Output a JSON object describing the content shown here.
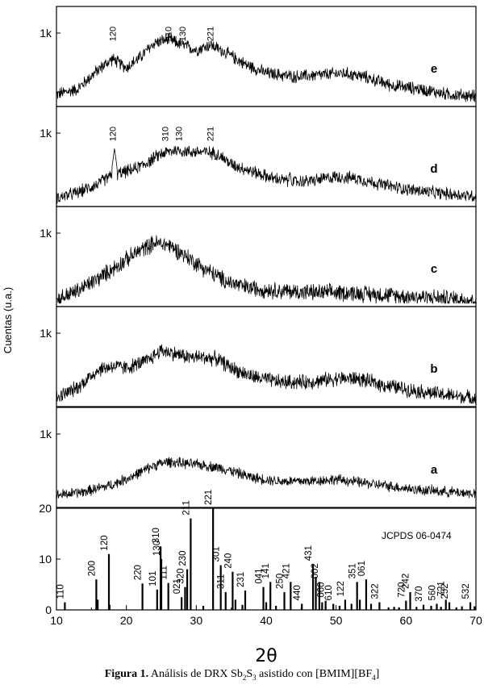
{
  "chart_data": {
    "type": "line",
    "ylabel": "Cuentas (u.a.)",
    "xlabel": "2θ",
    "xlim": [
      10,
      70
    ],
    "x_ticks": [
      10,
      20,
      30,
      40,
      50,
      60,
      70
    ],
    "x_tick_labels": [
      "10",
      "20",
      "30",
      "40",
      "50",
      "60",
      "70"
    ],
    "y_tick_label": "1k",
    "panels": [
      {
        "letter": "e",
        "shape": [
          [
            10,
            0.1
          ],
          [
            13,
            0.16
          ],
          [
            16,
            0.38
          ],
          [
            18,
            0.5
          ],
          [
            20,
            0.4
          ],
          [
            22,
            0.52
          ],
          [
            24,
            0.68
          ],
          [
            26,
            0.72
          ],
          [
            28,
            0.66
          ],
          [
            30,
            0.6
          ],
          [
            32,
            0.66
          ],
          [
            34,
            0.58
          ],
          [
            37,
            0.44
          ],
          [
            40,
            0.34
          ],
          [
            44,
            0.3
          ],
          [
            48,
            0.32
          ],
          [
            51,
            0.34
          ],
          [
            54,
            0.3
          ],
          [
            58,
            0.2
          ],
          [
            62,
            0.16
          ],
          [
            66,
            0.1
          ],
          [
            70,
            0.08
          ]
        ],
        "noise": 0.06,
        "spikes": [],
        "peak_labels": [
          {
            "x": 18,
            "text": "120"
          },
          {
            "x": 26,
            "text": "310"
          },
          {
            "x": 28,
            "text": "130"
          },
          {
            "x": 32,
            "text": "221"
          }
        ]
      },
      {
        "letter": "d",
        "shape": [
          [
            10,
            0.06
          ],
          [
            13,
            0.12
          ],
          [
            16,
            0.22
          ],
          [
            17.5,
            0.3
          ],
          [
            19,
            0.34
          ],
          [
            21,
            0.38
          ],
          [
            23,
            0.46
          ],
          [
            25,
            0.56
          ],
          [
            27,
            0.6
          ],
          [
            29,
            0.58
          ],
          [
            31,
            0.58
          ],
          [
            33,
            0.56
          ],
          [
            35,
            0.44
          ],
          [
            38,
            0.36
          ],
          [
            41,
            0.28
          ],
          [
            44,
            0.24
          ],
          [
            47,
            0.26
          ],
          [
            50,
            0.3
          ],
          [
            53,
            0.28
          ],
          [
            56,
            0.22
          ],
          [
            60,
            0.16
          ],
          [
            64,
            0.12
          ],
          [
            70,
            0.08
          ]
        ],
        "noise": 0.06,
        "spikes": [
          {
            "x": 18.3,
            "h": 0.62
          },
          {
            "x": 43.4,
            "h": 0.36
          }
        ],
        "peak_labels": [
          {
            "x": 18,
            "text": "120"
          },
          {
            "x": 25.5,
            "text": "310"
          },
          {
            "x": 27.5,
            "text": "130"
          },
          {
            "x": 32,
            "text": "221"
          }
        ]
      },
      {
        "letter": "c",
        "shape": [
          [
            10,
            0.04
          ],
          [
            13,
            0.14
          ],
          [
            16,
            0.28
          ],
          [
            19,
            0.44
          ],
          [
            22,
            0.6
          ],
          [
            24,
            0.68
          ],
          [
            26,
            0.66
          ],
          [
            28,
            0.56
          ],
          [
            31,
            0.4
          ],
          [
            34,
            0.26
          ],
          [
            37,
            0.18
          ],
          [
            42,
            0.14
          ],
          [
            47,
            0.12
          ],
          [
            52,
            0.12
          ],
          [
            56,
            0.1
          ],
          [
            60,
            0.08
          ],
          [
            65,
            0.06
          ],
          [
            70,
            0.04
          ]
        ],
        "noise": 0.08,
        "spikes": [],
        "peak_labels": []
      },
      {
        "letter": "b",
        "shape": [
          [
            10,
            0.06
          ],
          [
            13,
            0.18
          ],
          [
            16,
            0.38
          ],
          [
            18,
            0.42
          ],
          [
            20,
            0.4
          ],
          [
            23,
            0.48
          ],
          [
            25,
            0.6
          ],
          [
            27,
            0.56
          ],
          [
            29,
            0.52
          ],
          [
            31,
            0.52
          ],
          [
            33,
            0.5
          ],
          [
            35,
            0.4
          ],
          [
            38,
            0.3
          ],
          [
            42,
            0.24
          ],
          [
            46,
            0.24
          ],
          [
            50,
            0.28
          ],
          [
            53,
            0.28
          ],
          [
            56,
            0.22
          ],
          [
            60,
            0.16
          ],
          [
            65,
            0.1
          ],
          [
            70,
            0.06
          ]
        ],
        "noise": 0.07,
        "spikes": [],
        "peak_labels": []
      },
      {
        "letter": "a",
        "shape": [
          [
            10,
            0.1
          ],
          [
            14,
            0.14
          ],
          [
            18,
            0.22
          ],
          [
            21,
            0.32
          ],
          [
            24,
            0.44
          ],
          [
            26,
            0.48
          ],
          [
            28,
            0.46
          ],
          [
            31,
            0.44
          ],
          [
            34,
            0.4
          ],
          [
            38,
            0.3
          ],
          [
            42,
            0.26
          ],
          [
            46,
            0.26
          ],
          [
            50,
            0.28
          ],
          [
            54,
            0.24
          ],
          [
            58,
            0.2
          ],
          [
            62,
            0.16
          ],
          [
            66,
            0.14
          ],
          [
            70,
            0.12
          ]
        ],
        "noise": 0.05,
        "spikes": [],
        "peak_labels": []
      }
    ],
    "reference": {
      "label": "JCPDS 06-0474",
      "ylim": [
        0,
        20
      ],
      "y_ticks": [
        0,
        10,
        20
      ],
      "lines": [
        {
          "x": 11.2,
          "h": 1.5,
          "label": "110"
        },
        {
          "x": 15.7,
          "h": 6,
          "label": "200"
        },
        {
          "x": 15.9,
          "h": 2
        },
        {
          "x": 17.5,
          "h": 11,
          "label": "120"
        },
        {
          "x": 17.6,
          "h": 1
        },
        {
          "x": 22.3,
          "h": 5.2,
          "label": "220"
        },
        {
          "x": 24.4,
          "h": 4,
          "label": "101"
        },
        {
          "x": 24.9,
          "h": 12.5,
          "label": "310"
        },
        {
          "x": 25.0,
          "h": 10,
          "label": "130"
        },
        {
          "x": 26.0,
          "h": 5.3,
          "label": "111"
        },
        {
          "x": 27.9,
          "h": 2.5,
          "label": "021"
        },
        {
          "x": 28.4,
          "h": 4.5,
          "label": "320"
        },
        {
          "x": 28.7,
          "h": 8,
          "label": "230"
        },
        {
          "x": 29.2,
          "h": 18,
          "label": "211"
        },
        {
          "x": 31.0,
          "h": 0.8
        },
        {
          "x": 32.4,
          "h": 20,
          "label": "221"
        },
        {
          "x": 33.5,
          "h": 8.8,
          "label": "301"
        },
        {
          "x": 34.2,
          "h": 3.5,
          "label": "311"
        },
        {
          "x": 35.2,
          "h": 7.5,
          "label": "240"
        },
        {
          "x": 35.6,
          "h": 2
        },
        {
          "x": 36.6,
          "h": 1
        },
        {
          "x": 37.0,
          "h": 3.8,
          "label": "231"
        },
        {
          "x": 39.6,
          "h": 4.5,
          "label": "041"
        },
        {
          "x": 40.0,
          "h": 1.5
        },
        {
          "x": 40.6,
          "h": 5.5,
          "label": "141"
        },
        {
          "x": 41.4,
          "h": 0.8
        },
        {
          "x": 42.6,
          "h": 3.5,
          "label": "250"
        },
        {
          "x": 43.5,
          "h": 5.5,
          "label": "421"
        },
        {
          "x": 45.1,
          "h": 1.2,
          "label": "440"
        },
        {
          "x": 46.7,
          "h": 9,
          "label": "431"
        },
        {
          "x": 47.1,
          "h": 6.5
        },
        {
          "x": 47.6,
          "h": 5.5,
          "label": "002"
        },
        {
          "x": 48.0,
          "h": 1.5
        },
        {
          "x": 48.5,
          "h": 1.8,
          "label": "060"
        },
        {
          "x": 49.6,
          "h": 1.2,
          "label": "610"
        },
        {
          "x": 50.5,
          "h": 0.8
        },
        {
          "x": 51.3,
          "h": 2,
          "label": "122"
        },
        {
          "x": 52.2,
          "h": 1.2
        },
        {
          "x": 53.0,
          "h": 5.5,
          "label": "351"
        },
        {
          "x": 53.4,
          "h": 2
        },
        {
          "x": 54.3,
          "h": 6,
          "label": "061"
        },
        {
          "x": 55.0,
          "h": 1.2
        },
        {
          "x": 56.2,
          "h": 1.5,
          "label": "322"
        },
        {
          "x": 57.5,
          "h": 0.5
        },
        {
          "x": 58.3,
          "h": 0.6
        },
        {
          "x": 59.0,
          "h": 0.5
        },
        {
          "x": 60.0,
          "h": 1.8,
          "label": "720"
        },
        {
          "x": 60.6,
          "h": 3.5,
          "label": "242"
        },
        {
          "x": 61.5,
          "h": 0.6
        },
        {
          "x": 62.5,
          "h": 1.0,
          "label": "370"
        },
        {
          "x": 63.6,
          "h": 0.8
        },
        {
          "x": 64.4,
          "h": 1.2,
          "label": "560"
        },
        {
          "x": 65.0,
          "h": 0.6
        },
        {
          "x": 65.7,
          "h": 2,
          "label": "721"
        },
        {
          "x": 66.2,
          "h": 1.5,
          "label": "252"
        },
        {
          "x": 67.2,
          "h": 0.5
        },
        {
          "x": 68.0,
          "h": 0.7
        },
        {
          "x": 69.2,
          "h": 1.5,
          "label": "532"
        },
        {
          "x": 69.8,
          "h": 0.7
        }
      ]
    }
  },
  "caption": {
    "bold": "Figura 1.",
    "text": " Análisis de DRX Sb",
    "sub1": "2",
    "mid": "S",
    "sub2": "3",
    "text2": " asistido con [BMIM][BF",
    "sub3": "4",
    "end": "]"
  }
}
